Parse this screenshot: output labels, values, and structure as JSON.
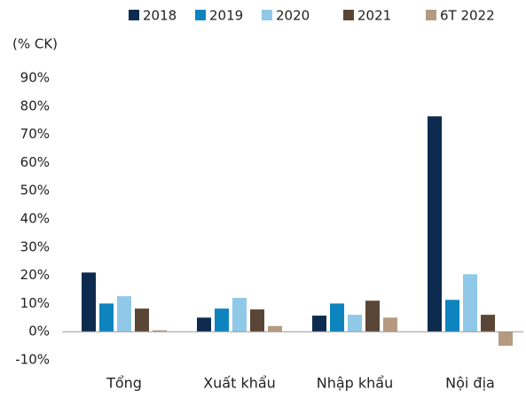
{
  "chart_data": {
    "type": "bar",
    "y_label": "(% CK)",
    "categories": [
      "Tổng",
      "Xuất khẩu",
      "Nhập khẩu",
      "Nội địa"
    ],
    "series": [
      {
        "name": "2018",
        "color": "#0d2b4e",
        "values": [
          21,
          5,
          5.7,
          76.4
        ]
      },
      {
        "name": "2019",
        "color": "#0e84bf",
        "values": [
          10,
          8.2,
          10,
          11.3
        ]
      },
      {
        "name": "2020",
        "color": "#90c8e8",
        "values": [
          12.6,
          12,
          6,
          20.4
        ]
      },
      {
        "name": "2021",
        "color": "#5a4636",
        "values": [
          8.2,
          7.9,
          11,
          6
        ]
      },
      {
        "name": "6T 2022",
        "color": "#b59a80",
        "values": [
          0.5,
          2,
          5,
          -5
        ]
      }
    ],
    "ylim": [
      -10,
      90
    ],
    "yticks": [
      {
        "value": -10,
        "label": "-10%"
      },
      {
        "value": 0,
        "label": "0%"
      },
      {
        "value": 10,
        "label": "10%"
      },
      {
        "value": 20,
        "label": "20%"
      },
      {
        "value": 30,
        "label": "30%"
      },
      {
        "value": 40,
        "label": "40%"
      },
      {
        "value": 50,
        "label": "50%"
      },
      {
        "value": 60,
        "label": "60%"
      },
      {
        "value": 70,
        "label": "70%"
      },
      {
        "value": 80,
        "label": "80%"
      },
      {
        "value": 90,
        "label": "90%"
      }
    ],
    "grid": false
  }
}
